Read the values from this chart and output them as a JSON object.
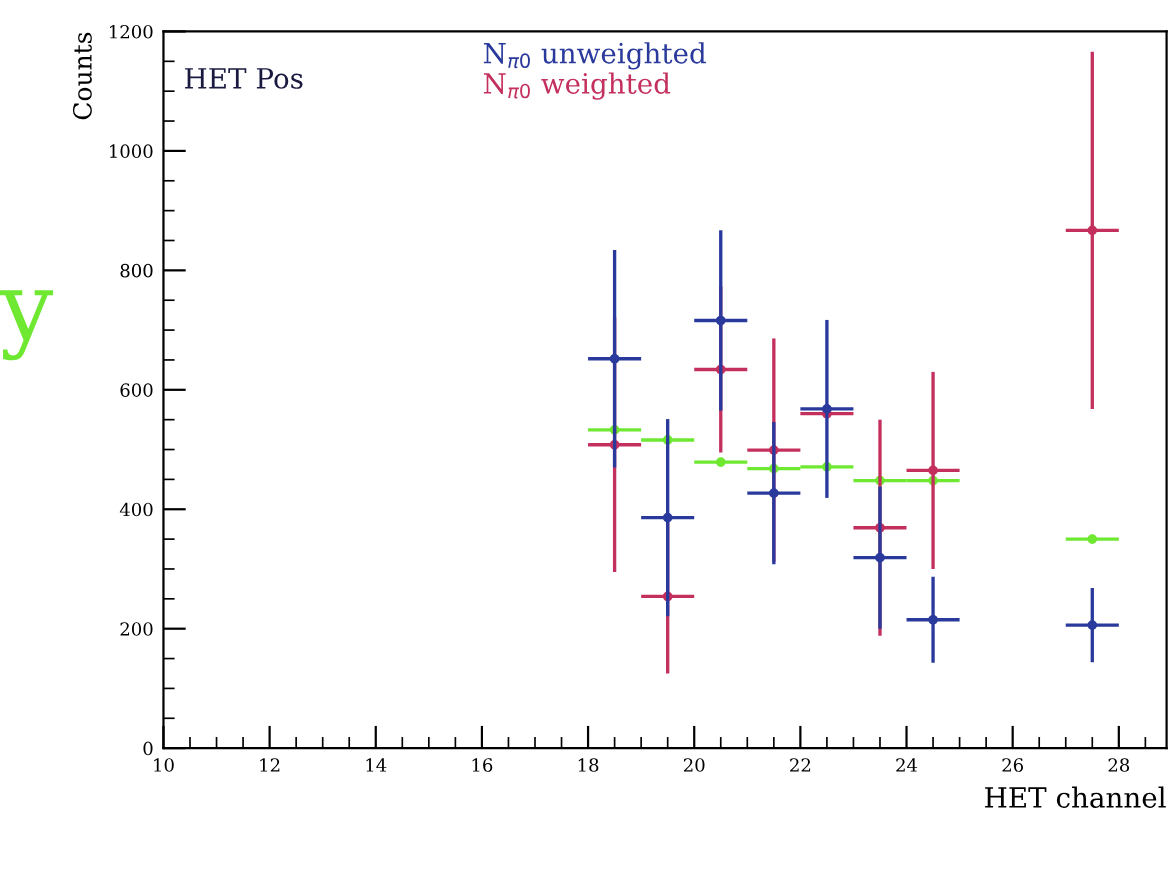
{
  "chart_data": {
    "type": "scatter",
    "xlabel": "HET channel",
    "ylabel": "Counts",
    "annotations": [
      "HET Pos",
      "y"
    ],
    "x": [
      18.5,
      19.5,
      20.5,
      21.5,
      22.5,
      23.5,
      24.5,
      27.5
    ],
    "series": [
      {
        "name": "N$_{π0}$ unweighted",
        "color": "#2a3a9c",
        "values": [
          652,
          386,
          716,
          427,
          568,
          319,
          215,
          206
        ],
        "errors": [
          182,
          165,
          151,
          119,
          149,
          119,
          72,
          62
        ],
        "xerrors": [
          0.5,
          0.5,
          0.5,
          0.5,
          0.5,
          0.5,
          0.5,
          0.5
        ]
      },
      {
        "name": "N$_{π0}$ weighted",
        "color": "#c4305e",
        "values": [
          508,
          254,
          634,
          499,
          560,
          369,
          465,
          867
        ],
        "errors": [
          213,
          129,
          139,
          187,
          null,
          181,
          165,
          299
        ],
        "xerrors": [
          0.5,
          0.5,
          0.5,
          0.5,
          0.5,
          0.5,
          0.5,
          0.5
        ]
      },
      {
        "color": "#6ee830",
        "values": [
          533,
          516,
          479,
          468,
          471,
          448,
          448,
          350
        ],
        "xerrors": [
          0.5,
          0.5,
          0.5,
          0.5,
          0.5,
          0.5,
          0.5,
          0.5
        ]
      }
    ],
    "xlim": [
      10,
      28.9
    ],
    "ylim": [
      0,
      1200
    ],
    "xticks": [
      10,
      12,
      14,
      16,
      18,
      20,
      22,
      24,
      26,
      28
    ],
    "yticks": [
      0,
      200,
      400,
      600,
      800,
      1000,
      1200
    ],
    "grid": false,
    "legend": "top",
    "marker": "circle"
  }
}
